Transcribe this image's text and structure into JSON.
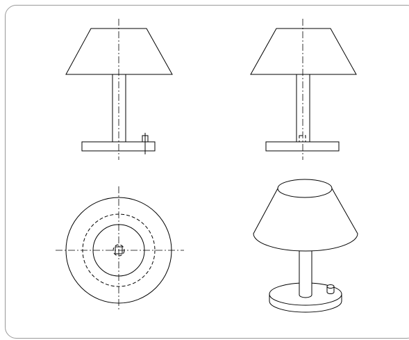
{
  "drawing": {
    "views": [
      "front-view",
      "side-view",
      "top-view",
      "isometric-view"
    ],
    "line_color": "#000000",
    "frame_color": "#999999",
    "background": "#ffffff"
  }
}
